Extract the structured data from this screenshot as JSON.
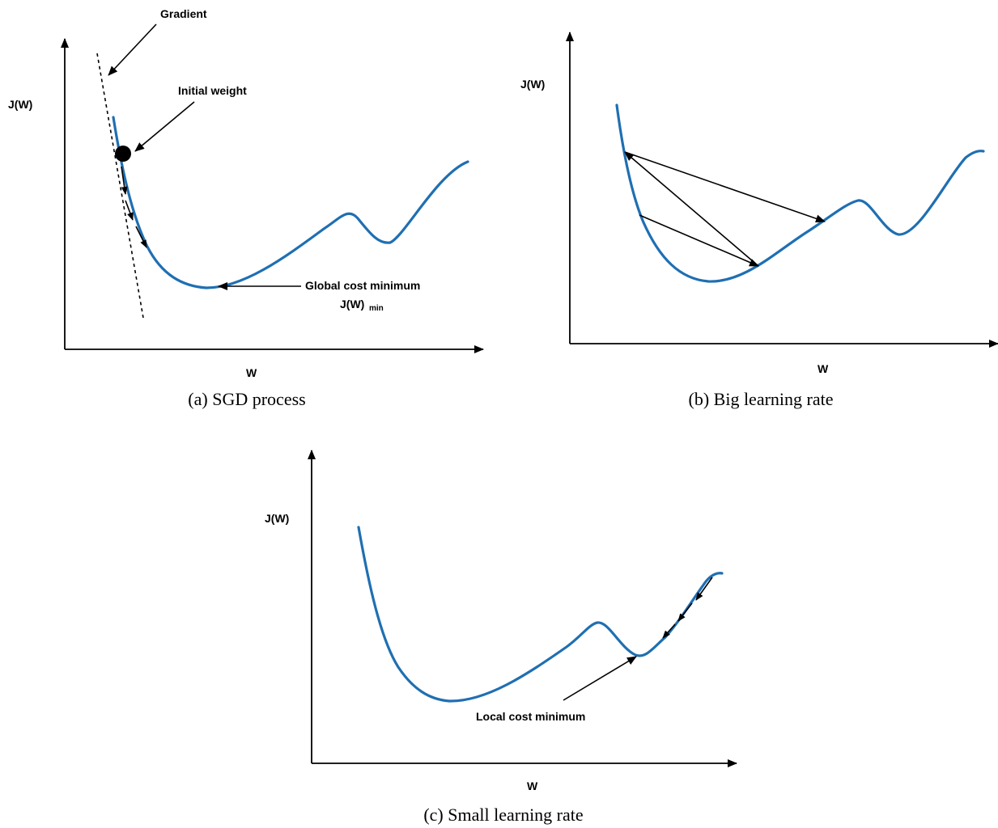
{
  "panel_a": {
    "ylabel": "J(W)",
    "xlabel": "W",
    "gradient_label": "Gradient",
    "initial_weight_label": "Initial weight",
    "global_min_label": "Global cost minimum",
    "global_min_sym": "J(W)",
    "global_min_sub": "min",
    "caption": "(a) SGD process"
  },
  "panel_b": {
    "ylabel": "J(W)",
    "xlabel": "W",
    "caption": "(b) Big learning rate"
  },
  "panel_c": {
    "ylabel": "J(W)",
    "xlabel": "W",
    "local_min_label": "Local cost minimum",
    "caption": "(c) Small learning rate"
  },
  "colors": {
    "curve": "#1f6fb2",
    "annotation": "#000000"
  }
}
